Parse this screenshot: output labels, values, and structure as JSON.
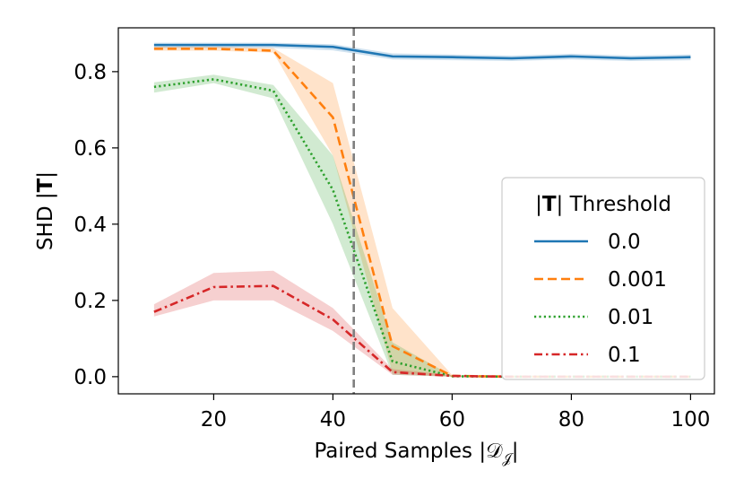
{
  "chart_data": {
    "type": "line",
    "title": "",
    "xlabel": "Paired Samples |𝒟",
    "xlabel_sub": "𝒥",
    "xlabel_suffix": "|",
    "ylabel_prefix": "SHD |",
    "ylabel_bold": "T",
    "ylabel_suffix": "|",
    "xlim": [
      4,
      104
    ],
    "ylim": [
      -0.045,
      0.915
    ],
    "xticks": [
      20,
      40,
      60,
      80,
      100
    ],
    "xtick_labels": [
      "20",
      "40",
      "60",
      "80",
      "100"
    ],
    "yticks": [
      0.0,
      0.2,
      0.4,
      0.6,
      0.8
    ],
    "ytick_labels": [
      "0.0",
      "0.2",
      "0.4",
      "0.6",
      "0.8"
    ],
    "vline_x": 43.5,
    "x": [
      10,
      20,
      30,
      40,
      50,
      60,
      70,
      80,
      90,
      100
    ],
    "legend": {
      "title_prefix": "|",
      "title_bold": "T",
      "title_suffix": "| Threshold",
      "position": "center-right"
    },
    "series": [
      {
        "name": "0.0",
        "color": "#1f77b4",
        "dash": "solid",
        "values": [
          0.87,
          0.87,
          0.87,
          0.865,
          0.84,
          0.838,
          0.835,
          0.84,
          0.835,
          0.838
        ],
        "lower": [
          0.862,
          0.862,
          0.862,
          0.856,
          0.832,
          0.83,
          0.828,
          0.832,
          0.828,
          0.83
        ],
        "upper": [
          0.876,
          0.876,
          0.876,
          0.872,
          0.848,
          0.845,
          0.842,
          0.847,
          0.842,
          0.845
        ]
      },
      {
        "name": "0.001",
        "color": "#ff7f0e",
        "dash": "dashed",
        "values": [
          0.86,
          0.86,
          0.855,
          0.68,
          0.08,
          0.002,
          0.0,
          0.0,
          0.0,
          0.0
        ],
        "lower": [
          0.855,
          0.855,
          0.85,
          0.58,
          0.01,
          0.0,
          0.0,
          0.0,
          0.0,
          0.0
        ],
        "upper": [
          0.866,
          0.866,
          0.862,
          0.77,
          0.18,
          0.004,
          0.0,
          0.0,
          0.0,
          0.0
        ]
      },
      {
        "name": "0.01",
        "color": "#2ca02c",
        "dash": "dotted",
        "values": [
          0.76,
          0.78,
          0.75,
          0.49,
          0.04,
          0.001,
          0.0,
          0.0,
          0.0,
          0.0
        ],
        "lower": [
          0.745,
          0.77,
          0.73,
          0.4,
          0.005,
          0.0,
          0.0,
          0.0,
          0.0,
          0.0
        ],
        "upper": [
          0.772,
          0.792,
          0.765,
          0.58,
          0.09,
          0.002,
          0.0,
          0.0,
          0.0,
          0.0
        ]
      },
      {
        "name": "0.1",
        "color": "#d62728",
        "dash": "dashdot",
        "values": [
          0.17,
          0.235,
          0.238,
          0.15,
          0.012,
          0.002,
          0.0,
          0.0,
          0.0,
          0.0
        ],
        "lower": [
          0.158,
          0.2,
          0.2,
          0.12,
          0.005,
          0.0,
          0.0,
          0.0,
          0.0,
          0.0
        ],
        "upper": [
          0.19,
          0.272,
          0.278,
          0.18,
          0.02,
          0.004,
          0.0,
          0.0,
          0.0,
          0.0
        ]
      }
    ]
  }
}
